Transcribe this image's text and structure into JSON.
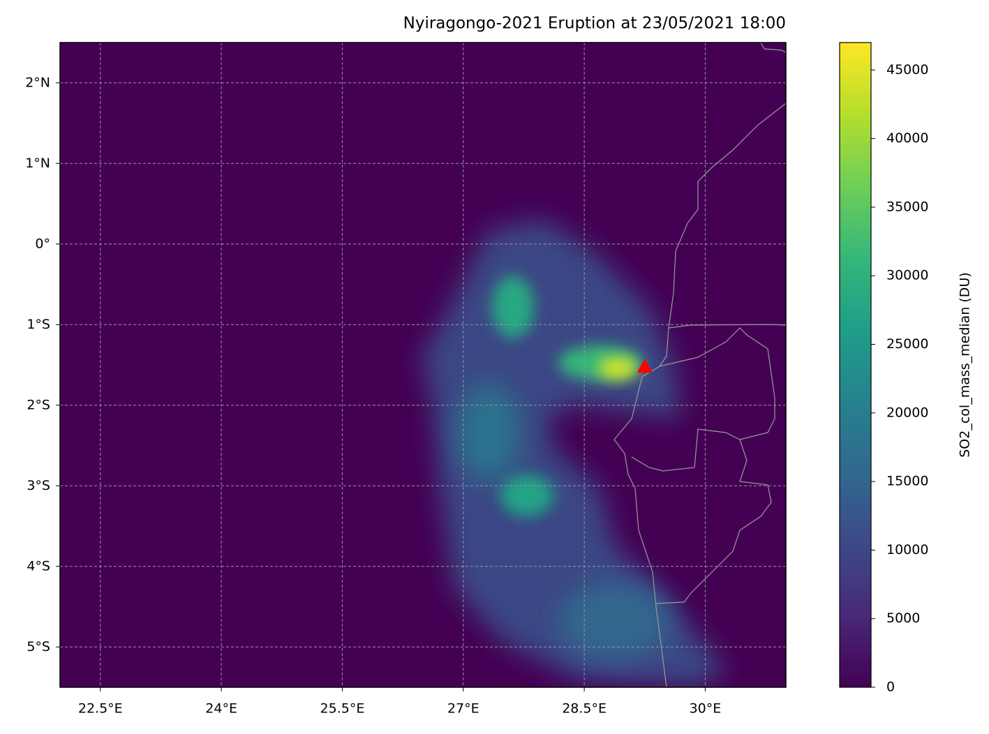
{
  "chart_data": {
    "type": "map",
    "title": "Nyiragongo-2021 Eruption at 23/05/2021 18:00",
    "xlim": [
      22,
      31
    ],
    "ylim": [
      -5.5,
      2.5
    ],
    "xticks": [
      {
        "value": 22.5,
        "label": "22.5°E"
      },
      {
        "value": 24,
        "label": "24°E"
      },
      {
        "value": 25.5,
        "label": "25.5°E"
      },
      {
        "value": 27,
        "label": "27°E"
      },
      {
        "value": 28.5,
        "label": "28.5°E"
      },
      {
        "value": 30,
        "label": "30°E"
      }
    ],
    "yticks": [
      {
        "value": 2,
        "label": "2°N"
      },
      {
        "value": 1,
        "label": "1°N"
      },
      {
        "value": 0,
        "label": "0°"
      },
      {
        "value": -1,
        "label": "1°S"
      },
      {
        "value": -2,
        "label": "2°S"
      },
      {
        "value": -3,
        "label": "3°S"
      },
      {
        "value": -4,
        "label": "4°S"
      },
      {
        "value": -5,
        "label": "5°S"
      }
    ],
    "grid": true,
    "colorbar": {
      "label": "SO2_col_mass_median (DU)",
      "lim": [
        0,
        47000
      ],
      "ticks": [
        0,
        5000,
        10000,
        15000,
        20000,
        25000,
        30000,
        35000,
        40000,
        45000
      ],
      "colormap": [
        "#440154",
        "#482878",
        "#3e4989",
        "#31688e",
        "#26828e",
        "#1f9e89",
        "#35b779",
        "#6ece58",
        "#b5de2b",
        "#fde725"
      ]
    },
    "marker": {
      "lon": 29.25,
      "lat": -1.52,
      "color": "#ff0000"
    }
  }
}
